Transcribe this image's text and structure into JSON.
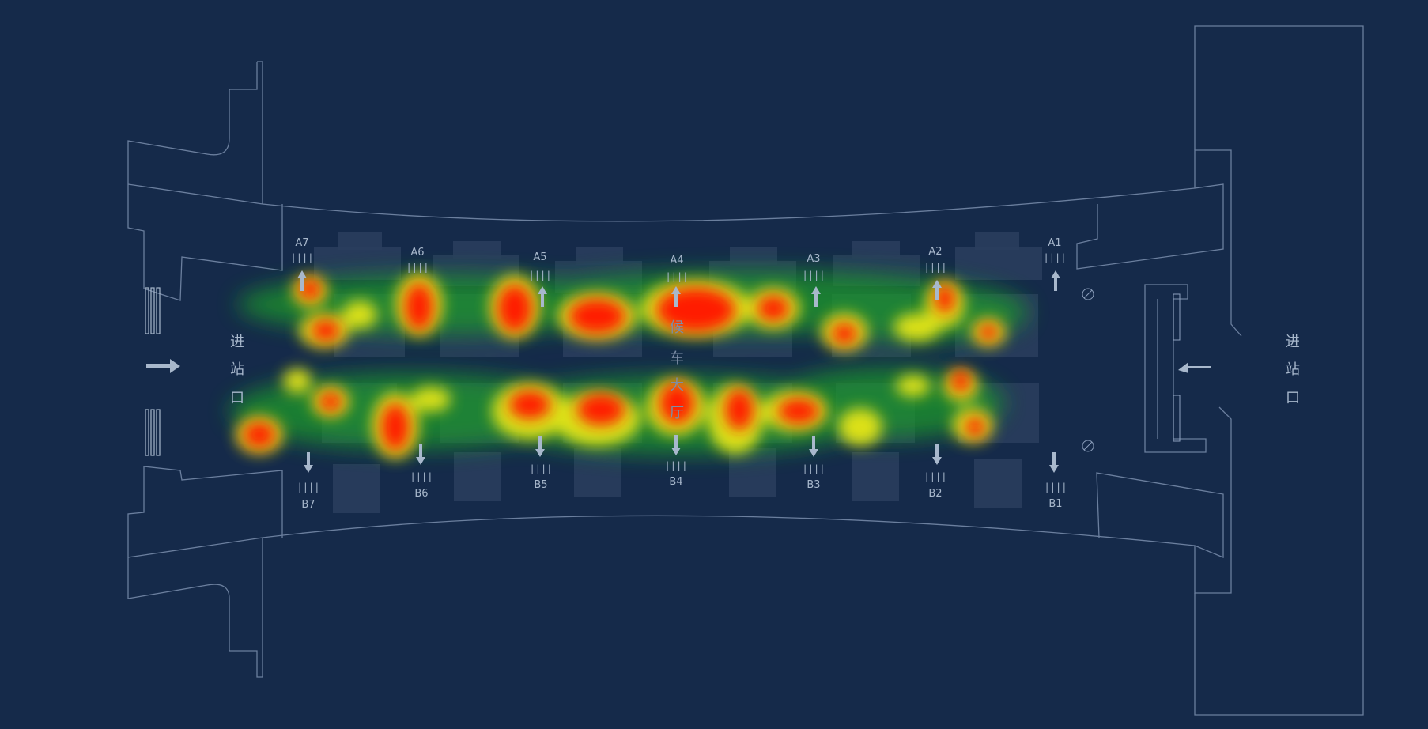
{
  "map": {
    "entrances": {
      "left": [
        "进",
        "站",
        "口"
      ],
      "right": [
        "进",
        "站",
        "口"
      ]
    },
    "center_label": [
      "候",
      "车",
      "大",
      "厅"
    ],
    "gates_top": [
      {
        "id": "A7",
        "ticks": "||||"
      },
      {
        "id": "A6",
        "ticks": "||||"
      },
      {
        "id": "A5",
        "ticks": "||||"
      },
      {
        "id": "A4",
        "ticks": "||||"
      },
      {
        "id": "A3",
        "ticks": "||||"
      },
      {
        "id": "A2",
        "ticks": "||||"
      },
      {
        "id": "A1",
        "ticks": "||||"
      }
    ],
    "gates_bottom": [
      {
        "id": "B7",
        "ticks": "||||"
      },
      {
        "id": "B6",
        "ticks": "||||"
      },
      {
        "id": "B5",
        "ticks": "||||"
      },
      {
        "id": "B4",
        "ticks": "||||"
      },
      {
        "id": "B3",
        "ticks": "||||"
      },
      {
        "id": "B2",
        "ticks": "||||"
      },
      {
        "id": "B1",
        "ticks": "||||"
      }
    ],
    "colors": {
      "background": "#152a4a",
      "outline": "#6b7f9e",
      "heat_low": "#1f9a2a",
      "heat_mid": "#e6e619",
      "heat_high": "#ff1a00"
    }
  }
}
